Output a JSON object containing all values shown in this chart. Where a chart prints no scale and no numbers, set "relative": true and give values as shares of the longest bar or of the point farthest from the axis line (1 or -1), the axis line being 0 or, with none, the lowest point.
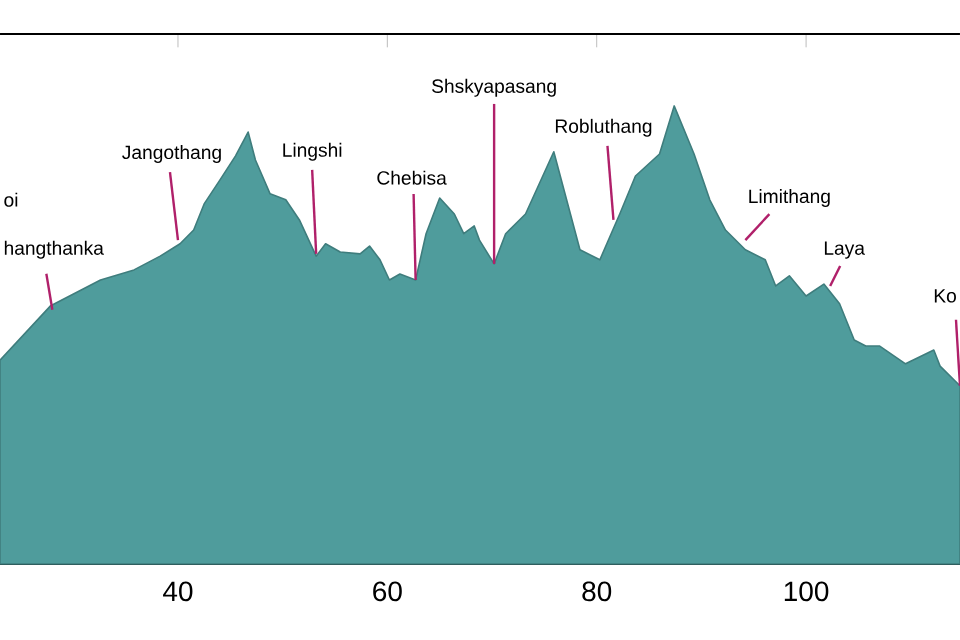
{
  "chart_data": {
    "type": "area",
    "relative": true,
    "x": [
      23.0,
      27.8,
      32.6,
      35.8,
      38.3,
      40.2,
      41.5,
      42.5,
      44.0,
      45.5,
      46.7,
      47.4,
      48.8,
      50.3,
      51.6,
      53.2,
      54.1,
      55.5,
      57.4,
      58.3,
      59.3,
      60.2,
      61.2,
      62.7,
      63.7,
      65.0,
      66.4,
      67.3,
      68.3,
      68.8,
      70.2,
      71.3,
      73.2,
      75.9,
      78.4,
      80.3,
      82.2,
      83.7,
      86.0,
      87.4,
      89.3,
      90.8,
      92.3,
      94.2,
      96.1,
      97.1,
      98.4,
      100.0,
      101.7,
      103.2,
      104.6,
      105.7,
      107.0,
      109.5,
      112.2,
      112.8,
      114.7
    ],
    "values": [
      0.445,
      0.563,
      0.62,
      0.642,
      0.672,
      0.699,
      0.729,
      0.786,
      0.838,
      0.891,
      0.943,
      0.882,
      0.808,
      0.795,
      0.751,
      0.672,
      0.699,
      0.681,
      0.677,
      0.694,
      0.664,
      0.62,
      0.633,
      0.62,
      0.721,
      0.799,
      0.764,
      0.721,
      0.738,
      0.707,
      0.655,
      0.721,
      0.764,
      0.9,
      0.686,
      0.664,
      0.764,
      0.847,
      0.895,
      1.0,
      0.895,
      0.795,
      0.729,
      0.686,
      0.664,
      0.607,
      0.629,
      0.585,
      0.611,
      0.568,
      0.489,
      0.476,
      0.476,
      0.437,
      0.467,
      0.432,
      0.389
    ],
    "color": "#4f9c9c",
    "xlim": [
      23,
      114.7
    ],
    "xticks": [
      40,
      60,
      80,
      100
    ],
    "annotations": [
      "oi",
      {
        "text": "hangthanka",
        "x": 28.0,
        "y": 0.555
      },
      {
        "text": "Jangothang",
        "x": 40.0,
        "y": 0.707
      },
      {
        "text": "Lingshi",
        "x": 53.2,
        "y": 0.677
      },
      {
        "text": "Chebisa",
        "x": 62.7,
        "y": 0.62
      },
      {
        "text": "Shskyapasang",
        "x": 70.2,
        "y": 0.655
      },
      {
        "text": "Robluthang",
        "x": 81.6,
        "y": 0.751
      },
      {
        "text": "Limithang",
        "x": 94.2,
        "y": 0.707
      },
      {
        "text": "Laya",
        "x": 102.3,
        "y": 0.607
      },
      {
        "text": "Ko",
        "x": 114.7,
        "y": 0.389
      }
    ]
  }
}
